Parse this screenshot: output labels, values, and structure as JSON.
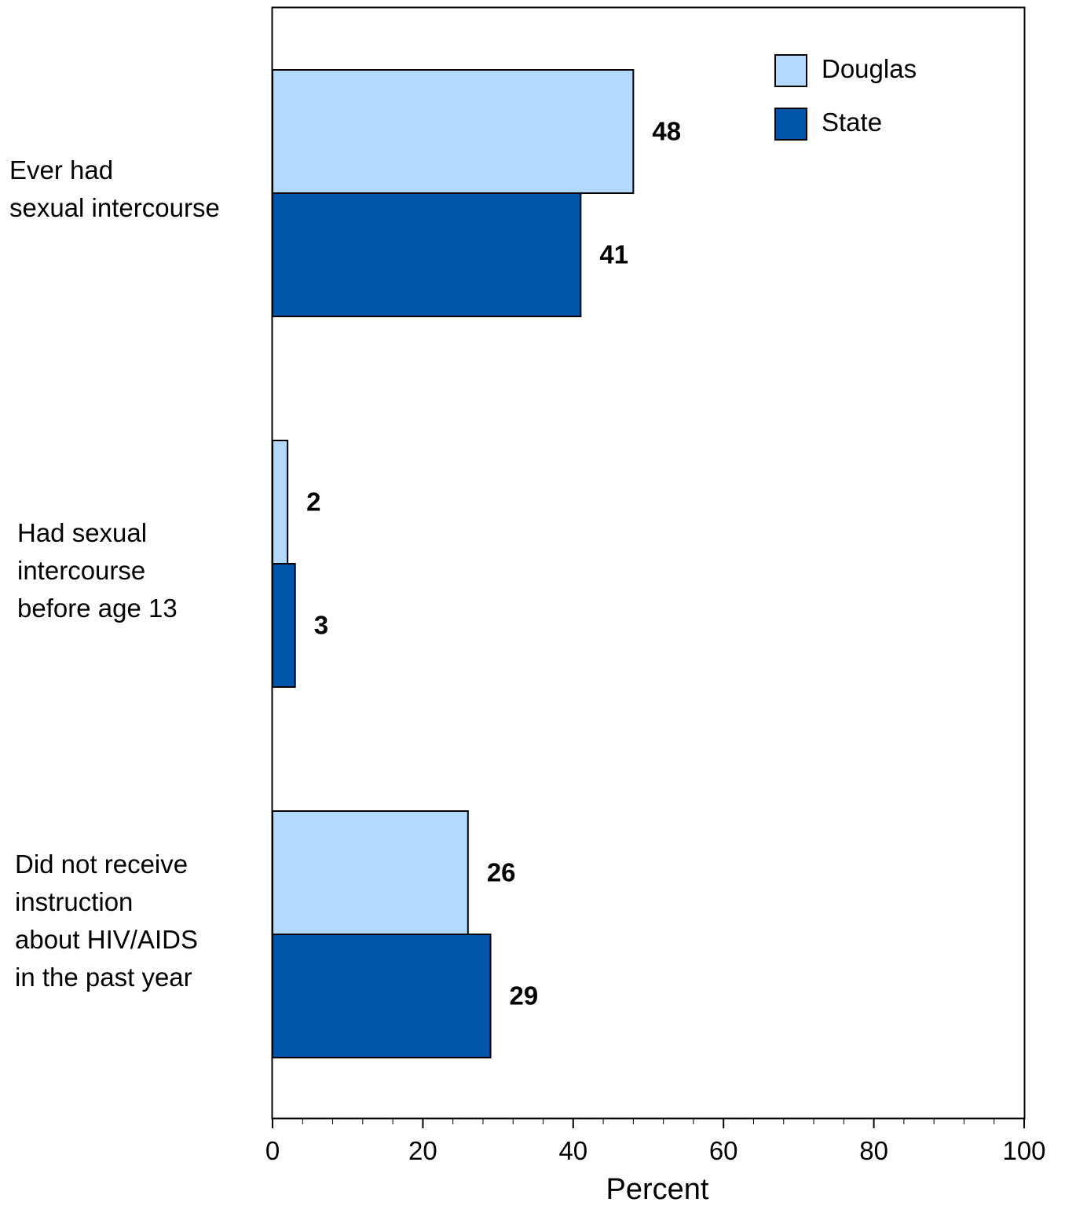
{
  "chart_data": {
    "type": "bar",
    "orientation": "horizontal",
    "categories": [
      [
        "Ever had",
        "sexual intercourse"
      ],
      [
        "Had sexual",
        "intercourse",
        "before age 13"
      ],
      [
        "Did not receive",
        "instruction",
        "about HIV/AIDS",
        "in the past year"
      ]
    ],
    "series": [
      {
        "name": "Douglas",
        "color": "#b3d9ff",
        "values": [
          48,
          2,
          26
        ]
      },
      {
        "name": "State",
        "color": "#0055a8",
        "values": [
          41,
          3,
          29
        ]
      }
    ],
    "xlabel": "Percent",
    "ylabel": "",
    "xlim": [
      0,
      100
    ],
    "xticks": [
      0,
      20,
      40,
      60,
      80,
      100
    ],
    "minor_tick_step": 4,
    "grid": false,
    "legend_position": "top-right",
    "data_labels": true
  }
}
